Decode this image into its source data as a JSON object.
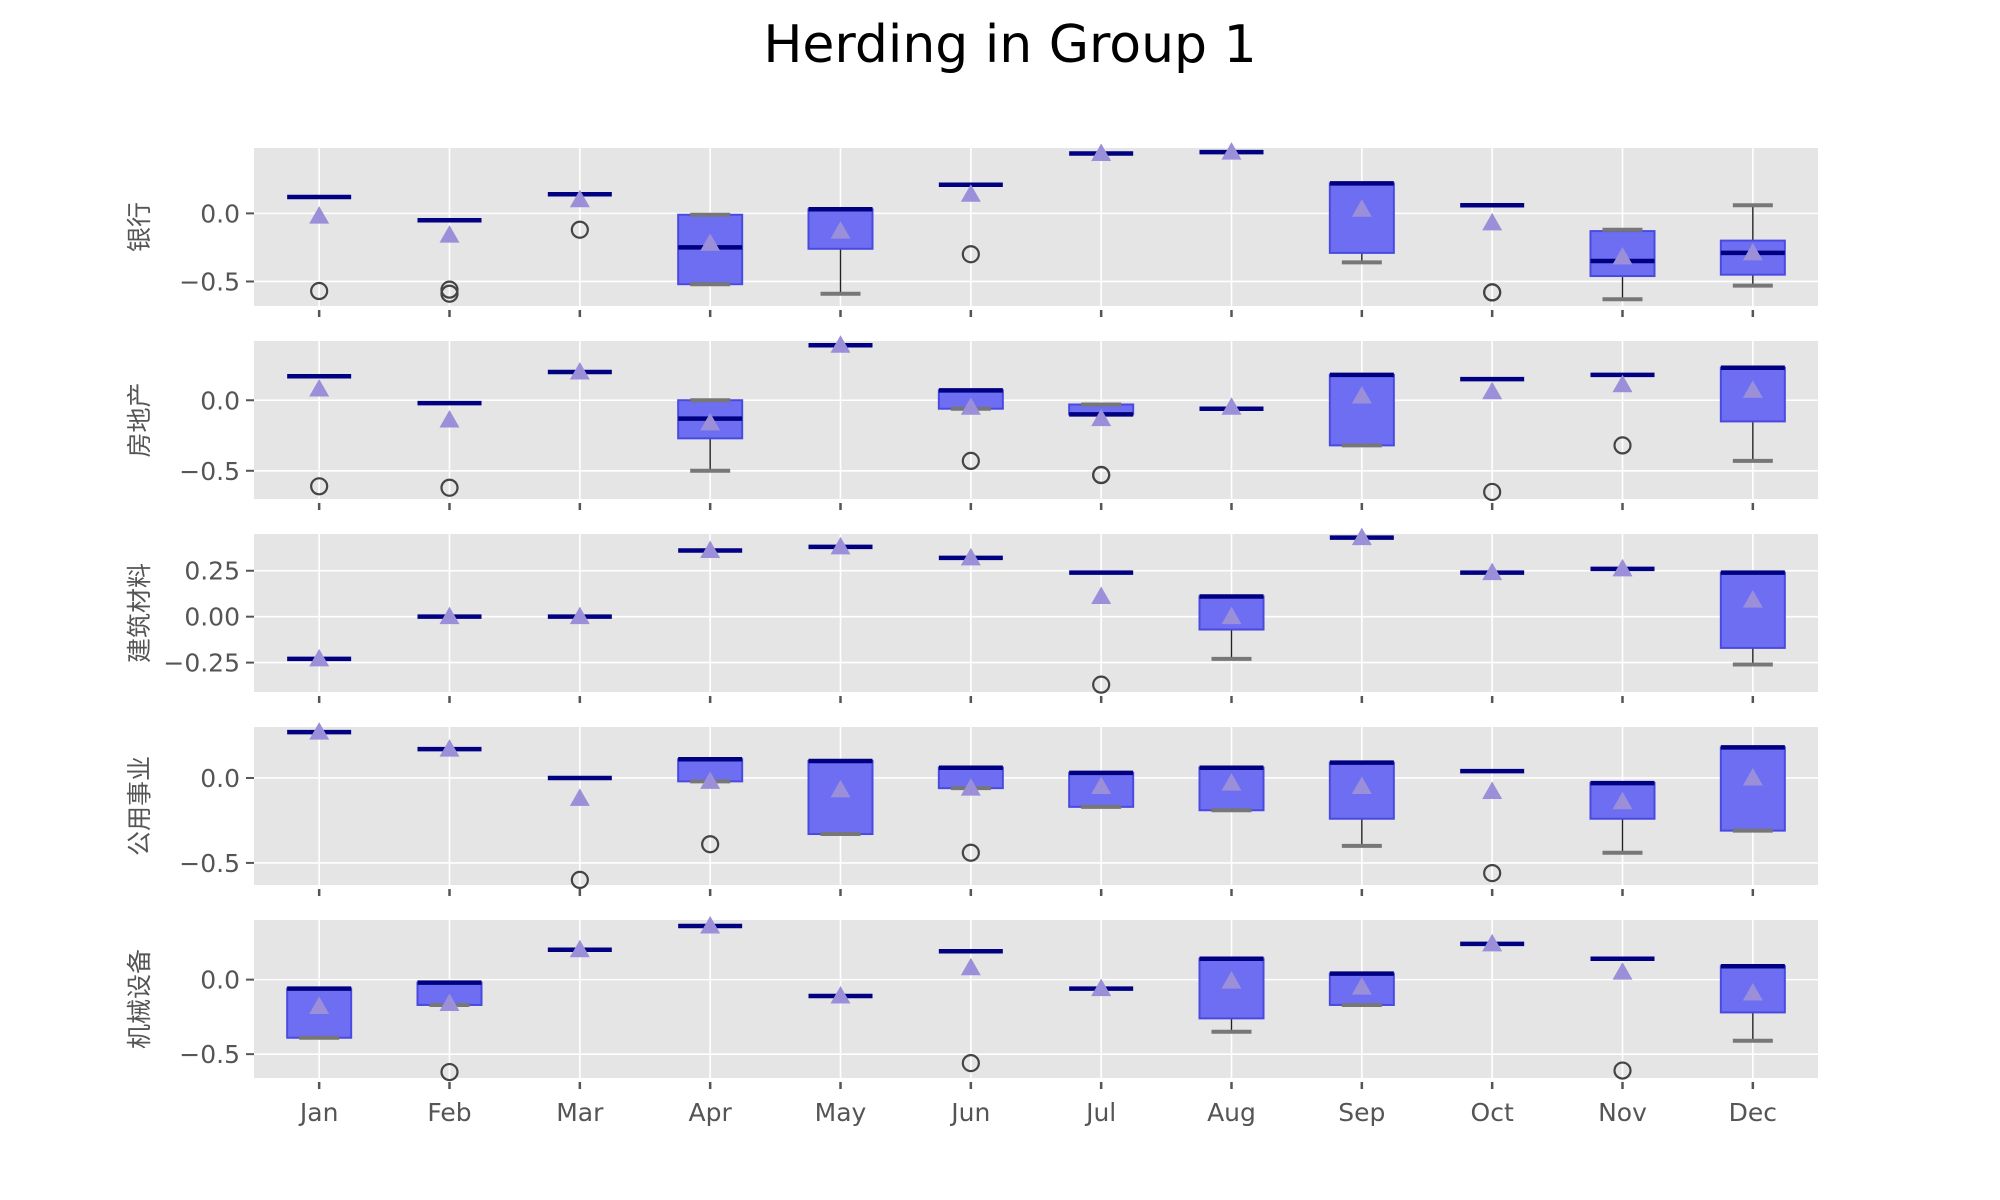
{
  "chart_data": {
    "type": "box",
    "title": "Herding in Group 1",
    "categories": [
      "Jan",
      "Feb",
      "Mar",
      "Apr",
      "May",
      "Jun",
      "Jul",
      "Aug",
      "Sep",
      "Oct",
      "Nov",
      "Dec"
    ],
    "colors": {
      "box_fill": "#6e6ef3",
      "box_edge": "#4a4ae0",
      "median": "#000080",
      "mean_marker": "#9a8fd8",
      "panel_background": "#e5e5e5",
      "grid": "#ffffff"
    },
    "legend": "none",
    "grid": true,
    "panels": [
      {
        "ylabel": "银行",
        "ylim": [
          -0.68,
          0.48
        ],
        "yticks": [
          0.0,
          -0.5
        ],
        "ytick_labels": [
          "0.0",
          "−0.5"
        ],
        "boxes": [
          {
            "q1": 0.12,
            "q3": 0.12,
            "median": 0.12,
            "whisker_low": 0.12,
            "whisker_high": 0.12,
            "mean": -0.02,
            "fliers": [
              -0.57
            ]
          },
          {
            "q1": -0.05,
            "q3": -0.05,
            "median": -0.05,
            "whisker_low": -0.05,
            "whisker_high": -0.05,
            "mean": -0.16,
            "fliers": [
              -0.56,
              -0.59
            ]
          },
          {
            "q1": 0.14,
            "q3": 0.14,
            "median": 0.14,
            "whisker_low": 0.14,
            "whisker_high": 0.14,
            "mean": 0.1,
            "fliers": [
              -0.12
            ]
          },
          {
            "q1": -0.52,
            "q3": -0.01,
            "median": -0.25,
            "whisker_low": -0.52,
            "whisker_high": -0.01,
            "mean": -0.22,
            "fliers": []
          },
          {
            "q1": -0.26,
            "q3": 0.03,
            "median": 0.03,
            "whisker_low": -0.59,
            "whisker_high": 0.03,
            "mean": -0.13,
            "fliers": []
          },
          {
            "q1": 0.21,
            "q3": 0.21,
            "median": 0.21,
            "whisker_low": 0.21,
            "whisker_high": 0.21,
            "mean": 0.14,
            "fliers": [
              -0.3
            ]
          },
          {
            "q1": 0.44,
            "q3": 0.44,
            "median": 0.44,
            "whisker_low": 0.44,
            "whisker_high": 0.44,
            "mean": 0.44,
            "fliers": []
          },
          {
            "q1": 0.45,
            "q3": 0.45,
            "median": 0.45,
            "whisker_low": 0.45,
            "whisker_high": 0.45,
            "mean": 0.45,
            "fliers": []
          },
          {
            "q1": -0.29,
            "q3": 0.22,
            "median": 0.22,
            "whisker_low": -0.36,
            "whisker_high": 0.22,
            "mean": 0.03,
            "fliers": []
          },
          {
            "q1": 0.06,
            "q3": 0.06,
            "median": 0.06,
            "whisker_low": 0.06,
            "whisker_high": 0.06,
            "mean": -0.07,
            "fliers": [
              -0.58,
              -0.58
            ]
          },
          {
            "q1": -0.46,
            "q3": -0.13,
            "median": -0.35,
            "whisker_low": -0.63,
            "whisker_high": -0.12,
            "mean": -0.32,
            "fliers": []
          },
          {
            "q1": -0.45,
            "q3": -0.2,
            "median": -0.29,
            "whisker_low": -0.53,
            "whisker_high": 0.06,
            "mean": -0.29,
            "fliers": []
          }
        ]
      },
      {
        "ylabel": "房地产",
        "ylim": [
          -0.7,
          0.42
        ],
        "yticks": [
          0.0,
          -0.5
        ],
        "ytick_labels": [
          "0.0",
          "−0.5"
        ],
        "boxes": [
          {
            "q1": 0.17,
            "q3": 0.17,
            "median": 0.17,
            "whisker_low": 0.17,
            "whisker_high": 0.17,
            "mean": 0.08,
            "fliers": [
              -0.61
            ]
          },
          {
            "q1": -0.02,
            "q3": -0.02,
            "median": -0.02,
            "whisker_low": -0.02,
            "whisker_high": -0.02,
            "mean": -0.14,
            "fliers": [
              -0.62
            ]
          },
          {
            "q1": 0.2,
            "q3": 0.2,
            "median": 0.2,
            "whisker_low": 0.2,
            "whisker_high": 0.2,
            "mean": 0.2,
            "fliers": []
          },
          {
            "q1": -0.27,
            "q3": 0.0,
            "median": -0.13,
            "whisker_low": -0.5,
            "whisker_high": 0.0,
            "mean": -0.16,
            "fliers": []
          },
          {
            "q1": 0.39,
            "q3": 0.39,
            "median": 0.39,
            "whisker_low": 0.39,
            "whisker_high": 0.39,
            "mean": 0.39,
            "fliers": []
          },
          {
            "q1": -0.06,
            "q3": 0.07,
            "median": 0.07,
            "whisker_low": -0.06,
            "whisker_high": 0.07,
            "mean": -0.05,
            "fliers": [
              -0.43
            ]
          },
          {
            "q1": -0.1,
            "q3": -0.03,
            "median": -0.1,
            "whisker_low": -0.1,
            "whisker_high": -0.03,
            "mean": -0.13,
            "fliers": [
              -0.53,
              -0.53
            ]
          },
          {
            "q1": -0.06,
            "q3": -0.06,
            "median": -0.06,
            "whisker_low": -0.06,
            "whisker_high": -0.06,
            "mean": -0.05,
            "fliers": []
          },
          {
            "q1": -0.32,
            "q3": 0.18,
            "median": 0.18,
            "whisker_low": -0.32,
            "whisker_high": 0.18,
            "mean": 0.03,
            "fliers": []
          },
          {
            "q1": 0.15,
            "q3": 0.15,
            "median": 0.15,
            "whisker_low": 0.15,
            "whisker_high": 0.15,
            "mean": 0.06,
            "fliers": [
              -0.65
            ]
          },
          {
            "q1": 0.18,
            "q3": 0.18,
            "median": 0.18,
            "whisker_low": 0.18,
            "whisker_high": 0.18,
            "mean": 0.11,
            "fliers": [
              -0.32
            ]
          },
          {
            "q1": -0.15,
            "q3": 0.23,
            "median": 0.23,
            "whisker_low": -0.43,
            "whisker_high": 0.23,
            "mean": 0.07,
            "fliers": []
          }
        ]
      },
      {
        "ylabel": "建筑材料",
        "ylim": [
          -0.41,
          0.45
        ],
        "yticks": [
          0.25,
          0.0,
          -0.25
        ],
        "ytick_labels": [
          "0.25",
          "0.00",
          "−0.25"
        ],
        "boxes": [
          {
            "q1": -0.23,
            "q3": -0.23,
            "median": -0.23,
            "whisker_low": -0.23,
            "whisker_high": -0.23,
            "mean": -0.23,
            "fliers": []
          },
          {
            "q1": 0.0,
            "q3": 0.0,
            "median": 0.0,
            "whisker_low": 0.0,
            "whisker_high": 0.0,
            "mean": 0.0,
            "fliers": []
          },
          {
            "q1": 0.0,
            "q3": 0.0,
            "median": 0.0,
            "whisker_low": 0.0,
            "whisker_high": 0.0,
            "mean": 0.0,
            "fliers": []
          },
          {
            "q1": 0.36,
            "q3": 0.36,
            "median": 0.36,
            "whisker_low": 0.36,
            "whisker_high": 0.36,
            "mean": 0.36,
            "fliers": []
          },
          {
            "q1": 0.38,
            "q3": 0.38,
            "median": 0.38,
            "whisker_low": 0.38,
            "whisker_high": 0.38,
            "mean": 0.38,
            "fliers": []
          },
          {
            "q1": 0.32,
            "q3": 0.32,
            "median": 0.32,
            "whisker_low": 0.32,
            "whisker_high": 0.32,
            "mean": 0.32,
            "fliers": []
          },
          {
            "q1": 0.24,
            "q3": 0.24,
            "median": 0.24,
            "whisker_low": 0.24,
            "whisker_high": 0.24,
            "mean": 0.11,
            "fliers": [
              -0.37
            ]
          },
          {
            "q1": -0.07,
            "q3": 0.11,
            "median": 0.11,
            "whisker_low": -0.23,
            "whisker_high": 0.11,
            "mean": 0.0,
            "fliers": []
          },
          {
            "q1": 0.43,
            "q3": 0.43,
            "median": 0.43,
            "whisker_low": 0.43,
            "whisker_high": 0.43,
            "mean": 0.43,
            "fliers": []
          },
          {
            "q1": 0.24,
            "q3": 0.24,
            "median": 0.24,
            "whisker_low": 0.24,
            "whisker_high": 0.24,
            "mean": 0.24,
            "fliers": []
          },
          {
            "q1": 0.26,
            "q3": 0.26,
            "median": 0.26,
            "whisker_low": 0.26,
            "whisker_high": 0.26,
            "mean": 0.26,
            "fliers": []
          },
          {
            "q1": -0.17,
            "q3": 0.24,
            "median": 0.24,
            "whisker_low": -0.26,
            "whisker_high": 0.24,
            "mean": 0.09,
            "fliers": []
          }
        ]
      },
      {
        "ylabel": "公用事业",
        "ylim": [
          -0.63,
          0.3
        ],
        "yticks": [
          0.0,
          -0.5
        ],
        "ytick_labels": [
          "0.0",
          "−0.5"
        ],
        "boxes": [
          {
            "q1": 0.27,
            "q3": 0.27,
            "median": 0.27,
            "whisker_low": 0.27,
            "whisker_high": 0.27,
            "mean": 0.27,
            "fliers": []
          },
          {
            "q1": 0.17,
            "q3": 0.17,
            "median": 0.17,
            "whisker_low": 0.17,
            "whisker_high": 0.17,
            "mean": 0.17,
            "fliers": []
          },
          {
            "q1": 0.0,
            "q3": 0.0,
            "median": 0.0,
            "whisker_low": 0.0,
            "whisker_high": 0.0,
            "mean": -0.12,
            "fliers": [
              -0.6
            ]
          },
          {
            "q1": -0.02,
            "q3": 0.11,
            "median": 0.11,
            "whisker_low": -0.02,
            "whisker_high": 0.11,
            "mean": -0.02,
            "fliers": [
              -0.39
            ]
          },
          {
            "q1": -0.33,
            "q3": 0.1,
            "median": 0.1,
            "whisker_low": -0.33,
            "whisker_high": 0.1,
            "mean": -0.07,
            "fliers": []
          },
          {
            "q1": -0.06,
            "q3": 0.06,
            "median": 0.06,
            "whisker_low": -0.06,
            "whisker_high": 0.06,
            "mean": -0.06,
            "fliers": [
              -0.44
            ]
          },
          {
            "q1": -0.17,
            "q3": 0.03,
            "median": 0.03,
            "whisker_low": -0.17,
            "whisker_high": 0.03,
            "mean": -0.05,
            "fliers": []
          },
          {
            "q1": -0.19,
            "q3": 0.06,
            "median": 0.06,
            "whisker_low": -0.19,
            "whisker_high": 0.06,
            "mean": -0.03,
            "fliers": []
          },
          {
            "q1": -0.24,
            "q3": 0.09,
            "median": 0.09,
            "whisker_low": -0.4,
            "whisker_high": 0.09,
            "mean": -0.05,
            "fliers": []
          },
          {
            "q1": 0.04,
            "q3": 0.04,
            "median": 0.04,
            "whisker_low": 0.04,
            "whisker_high": 0.04,
            "mean": -0.08,
            "fliers": [
              -0.56
            ]
          },
          {
            "q1": -0.24,
            "q3": -0.03,
            "median": -0.03,
            "whisker_low": -0.44,
            "whisker_high": -0.03,
            "mean": -0.14,
            "fliers": []
          },
          {
            "q1": -0.31,
            "q3": 0.18,
            "median": 0.18,
            "whisker_low": -0.31,
            "whisker_high": 0.18,
            "mean": 0.0,
            "fliers": []
          }
        ]
      },
      {
        "ylabel": "机械设备",
        "ylim": [
          -0.66,
          0.4
        ],
        "yticks": [
          0.0,
          -0.5
        ],
        "ytick_labels": [
          "0.0",
          "−0.5"
        ],
        "boxes": [
          {
            "q1": -0.39,
            "q3": -0.06,
            "median": -0.06,
            "whisker_low": -0.39,
            "whisker_high": -0.06,
            "mean": -0.18,
            "fliers": []
          },
          {
            "q1": -0.17,
            "q3": -0.02,
            "median": -0.02,
            "whisker_low": -0.17,
            "whisker_high": -0.02,
            "mean": -0.16,
            "fliers": [
              -0.62
            ]
          },
          {
            "q1": 0.2,
            "q3": 0.2,
            "median": 0.2,
            "whisker_low": 0.2,
            "whisker_high": 0.2,
            "mean": 0.2,
            "fliers": []
          },
          {
            "q1": 0.36,
            "q3": 0.36,
            "median": 0.36,
            "whisker_low": 0.36,
            "whisker_high": 0.36,
            "mean": 0.36,
            "fliers": []
          },
          {
            "q1": -0.11,
            "q3": -0.11,
            "median": -0.11,
            "whisker_low": -0.11,
            "whisker_high": -0.11,
            "mean": -0.11,
            "fliers": []
          },
          {
            "q1": 0.19,
            "q3": 0.19,
            "median": 0.19,
            "whisker_low": 0.19,
            "whisker_high": 0.19,
            "mean": 0.08,
            "fliers": [
              -0.56
            ]
          },
          {
            "q1": -0.06,
            "q3": -0.06,
            "median": -0.06,
            "whisker_low": -0.06,
            "whisker_high": -0.06,
            "mean": -0.06,
            "fliers": []
          },
          {
            "q1": -0.26,
            "q3": 0.14,
            "median": 0.14,
            "whisker_low": -0.35,
            "whisker_high": 0.14,
            "mean": -0.01,
            "fliers": []
          },
          {
            "q1": -0.17,
            "q3": 0.04,
            "median": 0.04,
            "whisker_low": -0.17,
            "whisker_high": 0.04,
            "mean": -0.05,
            "fliers": []
          },
          {
            "q1": 0.24,
            "q3": 0.24,
            "median": 0.24,
            "whisker_low": 0.24,
            "whisker_high": 0.24,
            "mean": 0.24,
            "fliers": []
          },
          {
            "q1": 0.14,
            "q3": 0.14,
            "median": 0.14,
            "whisker_low": 0.14,
            "whisker_high": 0.14,
            "mean": 0.05,
            "fliers": [
              -0.61
            ]
          },
          {
            "q1": -0.22,
            "q3": 0.09,
            "median": 0.09,
            "whisker_low": -0.41,
            "whisker_high": 0.09,
            "mean": -0.09,
            "fliers": []
          }
        ]
      }
    ]
  }
}
